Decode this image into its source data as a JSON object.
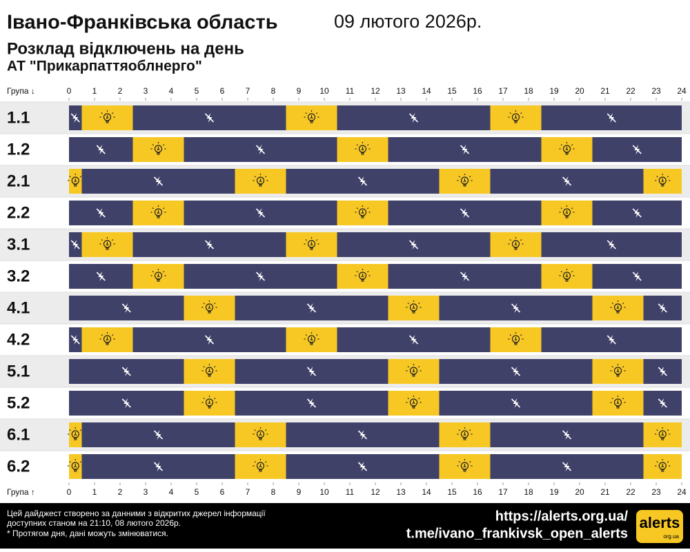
{
  "chart_data": {
    "type": "timeline",
    "title": "Івано-Франківська область",
    "date": "09 лютого 2026р.",
    "subtitle": "Розклад відключень на день",
    "provider": "АТ \"Прикарпаттяоблнерго\"",
    "axis_label_top": "Група ↓",
    "axis_label_bottom": "Група ↑",
    "xlim": [
      0,
      24
    ],
    "xticks": [
      0,
      1,
      2,
      3,
      4,
      5,
      6,
      7,
      8,
      9,
      10,
      11,
      12,
      13,
      14,
      15,
      16,
      17,
      18,
      19,
      20,
      21,
      22,
      23,
      24
    ],
    "on_color": "#f7c824",
    "off_color": "#3f4169",
    "groups": [
      {
        "name": "1.1",
        "segments": [
          {
            "from": 0,
            "to": 0.5,
            "power": false
          },
          {
            "from": 0.5,
            "to": 2.5,
            "power": true
          },
          {
            "from": 2.5,
            "to": 8.5,
            "power": false
          },
          {
            "from": 8.5,
            "to": 10.5,
            "power": true
          },
          {
            "from": 10.5,
            "to": 16.5,
            "power": false
          },
          {
            "from": 16.5,
            "to": 18.5,
            "power": true
          },
          {
            "from": 18.5,
            "to": 24,
            "power": false
          }
        ]
      },
      {
        "name": "1.2",
        "segments": [
          {
            "from": 0,
            "to": 2.5,
            "power": false
          },
          {
            "from": 2.5,
            "to": 4.5,
            "power": true
          },
          {
            "from": 4.5,
            "to": 10.5,
            "power": false
          },
          {
            "from": 10.5,
            "to": 12.5,
            "power": true
          },
          {
            "from": 12.5,
            "to": 18.5,
            "power": false
          },
          {
            "from": 18.5,
            "to": 20.5,
            "power": true
          },
          {
            "from": 20.5,
            "to": 24,
            "power": false
          }
        ]
      },
      {
        "name": "2.1",
        "segments": [
          {
            "from": 0,
            "to": 0.5,
            "power": true
          },
          {
            "from": 0.5,
            "to": 6.5,
            "power": false
          },
          {
            "from": 6.5,
            "to": 8.5,
            "power": true
          },
          {
            "from": 8.5,
            "to": 14.5,
            "power": false
          },
          {
            "from": 14.5,
            "to": 16.5,
            "power": true
          },
          {
            "from": 16.5,
            "to": 22.5,
            "power": false
          },
          {
            "from": 22.5,
            "to": 24,
            "power": true
          }
        ]
      },
      {
        "name": "2.2",
        "segments": [
          {
            "from": 0,
            "to": 2.5,
            "power": false
          },
          {
            "from": 2.5,
            "to": 4.5,
            "power": true
          },
          {
            "from": 4.5,
            "to": 10.5,
            "power": false
          },
          {
            "from": 10.5,
            "to": 12.5,
            "power": true
          },
          {
            "from": 12.5,
            "to": 18.5,
            "power": false
          },
          {
            "from": 18.5,
            "to": 20.5,
            "power": true
          },
          {
            "from": 20.5,
            "to": 24,
            "power": false
          }
        ]
      },
      {
        "name": "3.1",
        "segments": [
          {
            "from": 0,
            "to": 0.5,
            "power": false
          },
          {
            "from": 0.5,
            "to": 2.5,
            "power": true
          },
          {
            "from": 2.5,
            "to": 8.5,
            "power": false
          },
          {
            "from": 8.5,
            "to": 10.5,
            "power": true
          },
          {
            "from": 10.5,
            "to": 16.5,
            "power": false
          },
          {
            "from": 16.5,
            "to": 18.5,
            "power": true
          },
          {
            "from": 18.5,
            "to": 24,
            "power": false
          }
        ]
      },
      {
        "name": "3.2",
        "segments": [
          {
            "from": 0,
            "to": 2.5,
            "power": false
          },
          {
            "from": 2.5,
            "to": 4.5,
            "power": true
          },
          {
            "from": 4.5,
            "to": 10.5,
            "power": false
          },
          {
            "from": 10.5,
            "to": 12.5,
            "power": true
          },
          {
            "from": 12.5,
            "to": 18.5,
            "power": false
          },
          {
            "from": 18.5,
            "to": 20.5,
            "power": true
          },
          {
            "from": 20.5,
            "to": 24,
            "power": false
          }
        ]
      },
      {
        "name": "4.1",
        "segments": [
          {
            "from": 0,
            "to": 4.5,
            "power": false
          },
          {
            "from": 4.5,
            "to": 6.5,
            "power": true
          },
          {
            "from": 6.5,
            "to": 12.5,
            "power": false
          },
          {
            "from": 12.5,
            "to": 14.5,
            "power": true
          },
          {
            "from": 14.5,
            "to": 20.5,
            "power": false
          },
          {
            "from": 20.5,
            "to": 22.5,
            "power": true
          },
          {
            "from": 22.5,
            "to": 24,
            "power": false
          }
        ]
      },
      {
        "name": "4.2",
        "segments": [
          {
            "from": 0,
            "to": 0.5,
            "power": false
          },
          {
            "from": 0.5,
            "to": 2.5,
            "power": true
          },
          {
            "from": 2.5,
            "to": 8.5,
            "power": false
          },
          {
            "from": 8.5,
            "to": 10.5,
            "power": true
          },
          {
            "from": 10.5,
            "to": 16.5,
            "power": false
          },
          {
            "from": 16.5,
            "to": 18.5,
            "power": true
          },
          {
            "from": 18.5,
            "to": 24,
            "power": false
          }
        ]
      },
      {
        "name": "5.1",
        "segments": [
          {
            "from": 0,
            "to": 4.5,
            "power": false
          },
          {
            "from": 4.5,
            "to": 6.5,
            "power": true
          },
          {
            "from": 6.5,
            "to": 12.5,
            "power": false
          },
          {
            "from": 12.5,
            "to": 14.5,
            "power": true
          },
          {
            "from": 14.5,
            "to": 20.5,
            "power": false
          },
          {
            "from": 20.5,
            "to": 22.5,
            "power": true
          },
          {
            "from": 22.5,
            "to": 24,
            "power": false
          }
        ]
      },
      {
        "name": "5.2",
        "segments": [
          {
            "from": 0,
            "to": 4.5,
            "power": false
          },
          {
            "from": 4.5,
            "to": 6.5,
            "power": true
          },
          {
            "from": 6.5,
            "to": 12.5,
            "power": false
          },
          {
            "from": 12.5,
            "to": 14.5,
            "power": true
          },
          {
            "from": 14.5,
            "to": 20.5,
            "power": false
          },
          {
            "from": 20.5,
            "to": 22.5,
            "power": true
          },
          {
            "from": 22.5,
            "to": 24,
            "power": false
          }
        ]
      },
      {
        "name": "6.1",
        "segments": [
          {
            "from": 0,
            "to": 0.5,
            "power": true
          },
          {
            "from": 0.5,
            "to": 6.5,
            "power": false
          },
          {
            "from": 6.5,
            "to": 8.5,
            "power": true
          },
          {
            "from": 8.5,
            "to": 14.5,
            "power": false
          },
          {
            "from": 14.5,
            "to": 16.5,
            "power": true
          },
          {
            "from": 16.5,
            "to": 22.5,
            "power": false
          },
          {
            "from": 22.5,
            "to": 24,
            "power": true
          }
        ]
      },
      {
        "name": "6.2",
        "segments": [
          {
            "from": 0,
            "to": 0.5,
            "power": true
          },
          {
            "from": 0.5,
            "to": 6.5,
            "power": false
          },
          {
            "from": 6.5,
            "to": 8.5,
            "power": true
          },
          {
            "from": 8.5,
            "to": 14.5,
            "power": false
          },
          {
            "from": 14.5,
            "to": 16.5,
            "power": true
          },
          {
            "from": 16.5,
            "to": 22.5,
            "power": false
          },
          {
            "from": 22.5,
            "to": 24,
            "power": true
          }
        ]
      }
    ],
    "footer": {
      "notes": [
        "Цей дайджест створено за данними з відкритих джерел інформації",
        "доступних станом на 21:10, 08 лютого 2026р.",
        "* Протягом дня, дані можуть змінюватися."
      ],
      "links": [
        "https://alerts.org.ua/",
        "t.me/ivano_frankivsk_open_alerts"
      ],
      "logo": "alerts",
      "logo_sub": "org.ua"
    }
  }
}
